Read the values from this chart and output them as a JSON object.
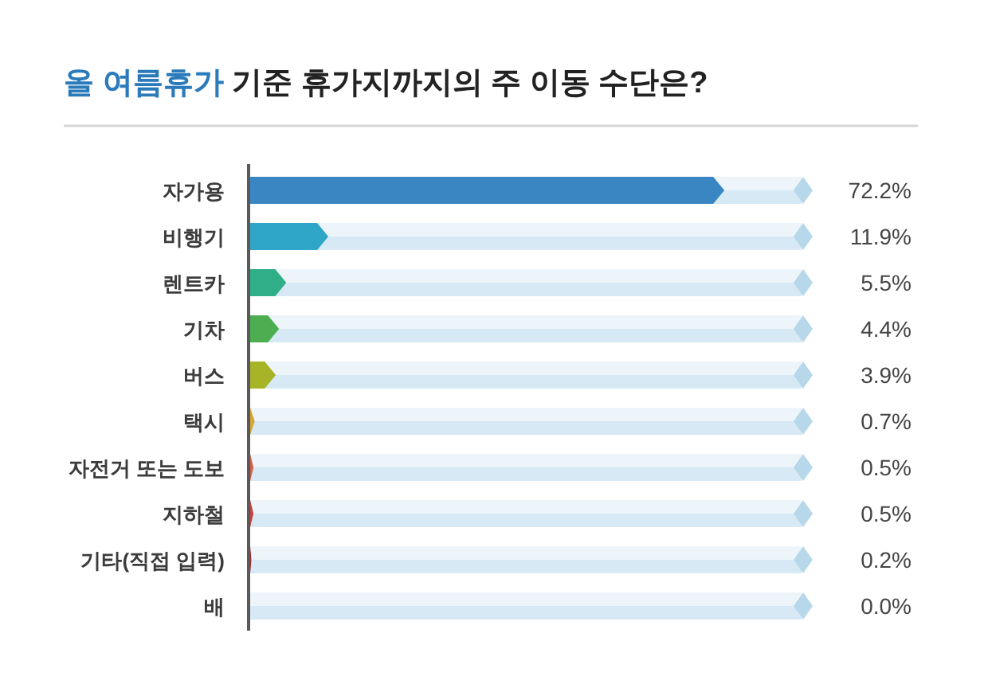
{
  "chart_data": {
    "type": "bar",
    "orientation": "horizontal",
    "title": "**올 여름휴가** 기준 휴가지까지의 주 이동 수단은?",
    "categories": [
      "자가용",
      "비행기",
      "렌트카",
      "기차",
      "버스",
      "택시",
      "자전거 또는 도보",
      "지하철",
      "기타(직접 입력)",
      "배"
    ],
    "values": [
      72.2,
      11.9,
      5.5,
      4.4,
      3.9,
      0.7,
      0.5,
      0.5,
      0.2,
      0.0
    ],
    "colors": [
      "#3a86c2",
      "#2fa6c8",
      "#2fae88",
      "#4cae50",
      "#a8b428",
      "#d6a636",
      "#d0604a",
      "#c4423e",
      "#a42c2c",
      null
    ],
    "value_labels": [
      "72.2%",
      "11.9%",
      "5.5%",
      "4.4%",
      "3.9%",
      "0.7%",
      "0.5%",
      "0.5%",
      "0.2%",
      "0.0%"
    ]
  }
}
